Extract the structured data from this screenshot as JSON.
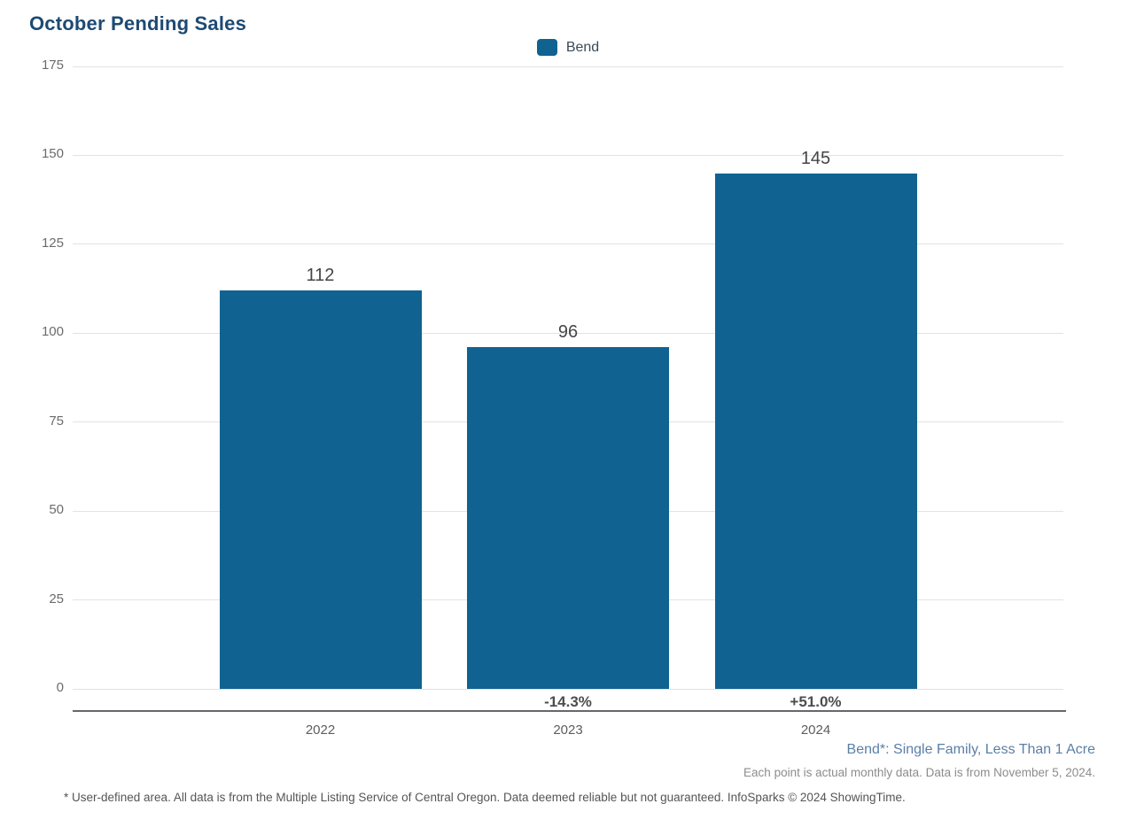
{
  "title": "October Pending Sales",
  "legend": {
    "label": "Bend",
    "swatch_color": "#106291"
  },
  "chart_data": {
    "type": "bar",
    "title": "October Pending Sales",
    "categories": [
      "2022",
      "2023",
      "2024"
    ],
    "series": [
      {
        "name": "Bend",
        "values": [
          112,
          96,
          145
        ]
      }
    ],
    "value_labels": [
      "112",
      "96",
      "145"
    ],
    "change_labels": [
      "",
      "-14.3%",
      "+51.0%"
    ],
    "y_ticks": [
      0,
      25,
      50,
      75,
      100,
      125,
      150,
      175
    ],
    "ylim": [
      0,
      175
    ],
    "xlabel": "",
    "ylabel": "",
    "grid": true,
    "legend_position": "top-center",
    "bar_color": "#106291"
  },
  "captions": {
    "series_note": "Bend*: Single Family, Less Than 1 Acre",
    "data_note": "Each point is actual monthly data. Data is from November 5, 2024.",
    "footer": "* User-defined area. All data is from the Multiple Listing Service of Central Oregon. Data deemed reliable but not guaranteed. InfoSparks © 2024 ShowingTime."
  },
  "colors": {
    "bar": "#106291",
    "title": "#1d4a73",
    "gridline": "#e2e2e2",
    "axis_line": "#64686c",
    "tick_text": "#6b6b6b",
    "series_note_text": "#5b7fa6"
  }
}
